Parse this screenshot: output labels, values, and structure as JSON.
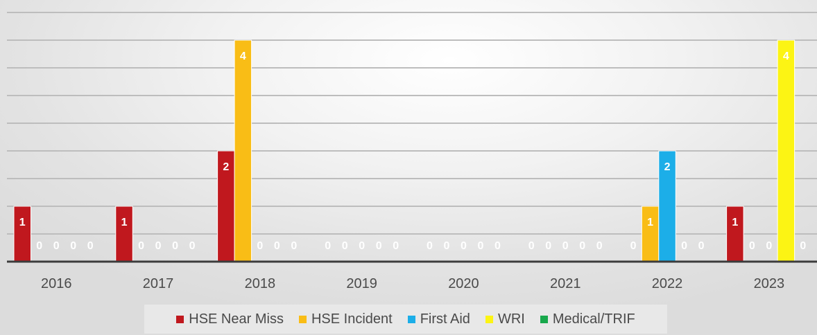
{
  "chart_data": {
    "type": "bar",
    "categories": [
      "2016",
      "2017",
      "2018",
      "2019",
      "2020",
      "2021",
      "2022",
      "2023"
    ],
    "series": [
      {
        "name": "HSE Near Miss",
        "color": "#c0181e",
        "values": [
          1,
          1,
          2,
          0,
          0,
          0,
          0,
          1
        ]
      },
      {
        "name": "HSE Incident",
        "color": "#f9bd16",
        "values": [
          0,
          0,
          4,
          0,
          0,
          0,
          1,
          0
        ]
      },
      {
        "name": "First Aid",
        "color": "#1caee8",
        "values": [
          0,
          0,
          0,
          0,
          0,
          0,
          2,
          0
        ]
      },
      {
        "name": "WRI",
        "color": "#fcf414",
        "values": [
          0,
          0,
          0,
          0,
          0,
          0,
          0,
          4
        ]
      },
      {
        "name": "Medical/TRIF",
        "color": "#18a84c",
        "values": [
          0,
          0,
          0,
          0,
          0,
          0,
          0,
          0
        ]
      }
    ],
    "ylim": [
      0,
      4.5
    ],
    "grid": true,
    "data_labels": true,
    "legend": "bottom"
  }
}
